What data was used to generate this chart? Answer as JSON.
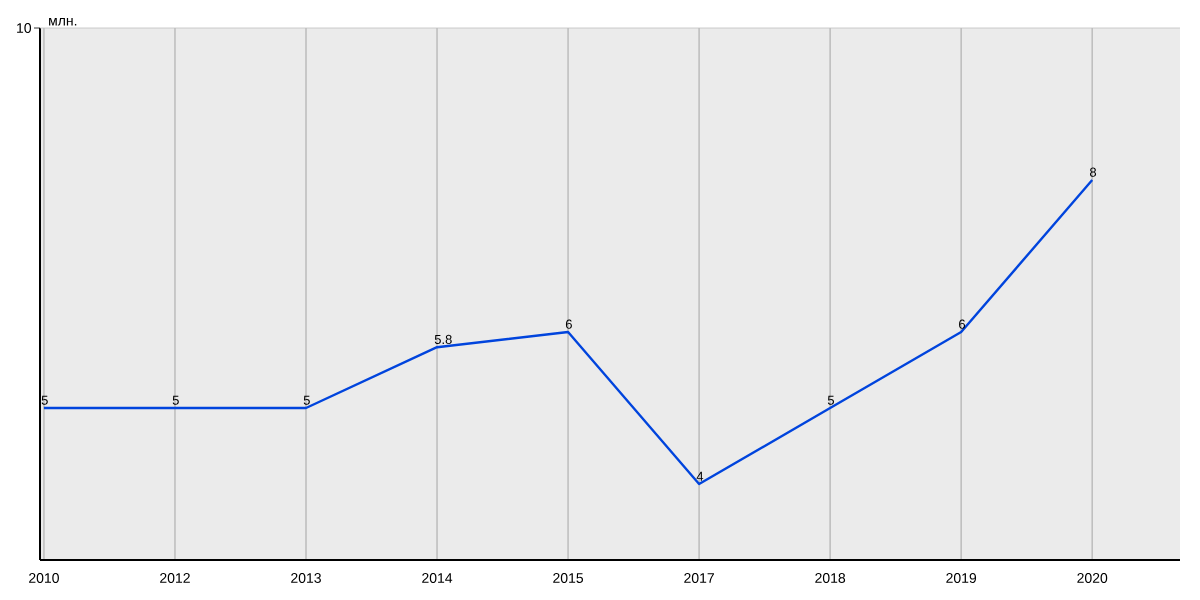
{
  "chart_data": {
    "type": "line",
    "ylabel": "млн.",
    "annotations": [
      "10"
    ],
    "categories": [
      "2010",
      "2012",
      "2013",
      "2014",
      "2015",
      "2017",
      "2018",
      "2019",
      "2020"
    ],
    "values": [
      5,
      5,
      5,
      5.8,
      6,
      4,
      5,
      6,
      8
    ],
    "color": "#0044dd",
    "ylim": [
      3,
      10
    ],
    "grid": "x",
    "data_labels": true,
    "marker": "none",
    "line_style": "solid"
  }
}
